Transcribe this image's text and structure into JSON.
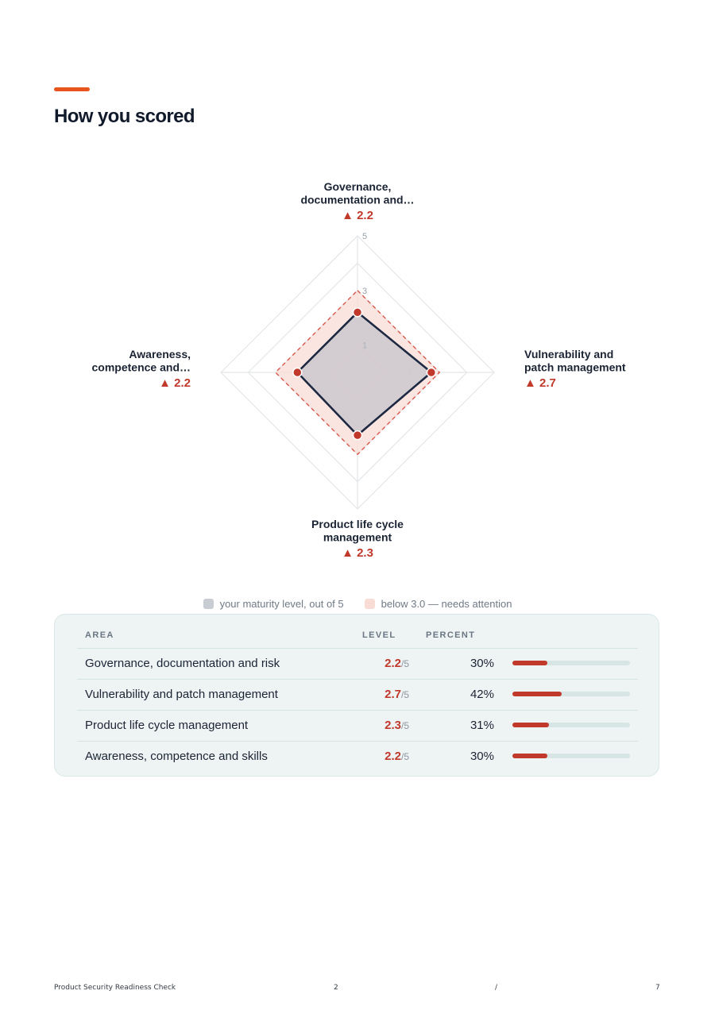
{
  "page": {
    "title": "How you scored"
  },
  "chart_data": {
    "type": "radar",
    "range": [
      0,
      5
    ],
    "ticks": [
      "5",
      "3",
      "1"
    ],
    "axes": [
      {
        "label_lines": [
          "Governance,",
          "documentation and…"
        ],
        "value": 2.2,
        "score_text": "▲ 2.2"
      },
      {
        "label_lines": [
          "Vulnerability and",
          "patch management"
        ],
        "value": 2.7,
        "score_text": "▲ 2.7"
      },
      {
        "label_lines": [
          "Product life cycle",
          "management"
        ],
        "value": 2.3,
        "score_text": "▲ 2.3"
      },
      {
        "label_lines": [
          "Awareness,",
          "competence and…"
        ],
        "value": 2.2,
        "score_text": "▲ 2.2"
      }
    ],
    "threshold": 3.0,
    "series": [
      {
        "name": "your maturity level, out of 5",
        "values": [
          2.2,
          2.7,
          2.3,
          2.2
        ]
      }
    ],
    "colors": {
      "score": "#c0392b",
      "series_line": "#1d2942",
      "series_fill": "#b9bdc6",
      "threshold_fill": "#f9dcd6",
      "threshold_line": "#d9574a",
      "grid": "#e4e6e8"
    }
  },
  "legend": {
    "items": [
      {
        "label": "your maturity level, out of 5",
        "color": "#c8ccd3"
      },
      {
        "label": "below 3.0 — needs attention",
        "color": "#f9dcd6"
      }
    ]
  },
  "table": {
    "headers": {
      "area": "AREA",
      "level": "LEVEL",
      "percent": "PERCENT"
    },
    "rows": [
      {
        "area": "Governance, documentation and risk",
        "level": "2.2",
        "level_max": "/5",
        "percent_text": "30%",
        "percent": 30
      },
      {
        "area": "Vulnerability and patch management",
        "level": "2.7",
        "level_max": "/5",
        "percent_text": "42%",
        "percent": 42
      },
      {
        "area": "Product life cycle management",
        "level": "2.3",
        "level_max": "/5",
        "percent_text": "31%",
        "percent": 31
      },
      {
        "area": "Awareness, competence and skills",
        "level": "2.2",
        "level_max": "/5",
        "percent_text": "30%",
        "percent": 30
      }
    ]
  },
  "footer": {
    "doc_title": "Product Security Readiness Check",
    "page_number": "2",
    "separator": "/",
    "page_total": "7"
  }
}
